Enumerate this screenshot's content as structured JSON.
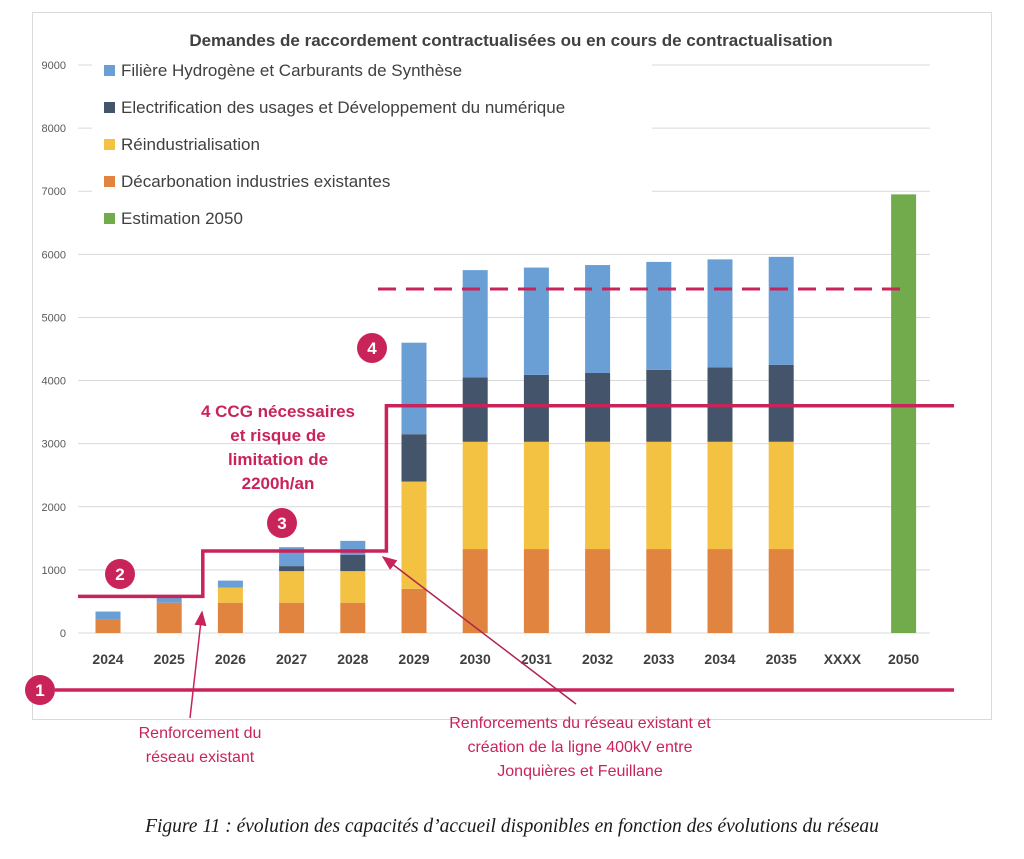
{
  "chart_data": {
    "type": "bar",
    "stacked": true,
    "title": "Demandes de raccordement contractualisées ou en cours de contractualisation",
    "categories": [
      "2024",
      "2025",
      "2026",
      "2027",
      "2028",
      "2029",
      "2030",
      "2031",
      "2032",
      "2033",
      "2034",
      "2035",
      "XXXX",
      "2050"
    ],
    "ylim": [
      0,
      9000
    ],
    "yticks": [
      "0",
      "1000",
      "2000",
      "3000",
      "4000",
      "5000",
      "6000",
      "7000",
      "8000",
      "9000"
    ],
    "grid": true,
    "legend_position": "top-left",
    "series": [
      {
        "name": "Décarbonation industries existantes",
        "color": "#e0843f",
        "values": [
          220,
          480,
          480,
          480,
          480,
          700,
          1330,
          1330,
          1330,
          1330,
          1330,
          1330,
          0,
          0
        ]
      },
      {
        "name": "Réindustrialisation",
        "color": "#f4c242",
        "values": [
          0,
          0,
          240,
          500,
          500,
          1700,
          1700,
          1700,
          1700,
          1700,
          1700,
          1700,
          0,
          0
        ]
      },
      {
        "name": "Electrification des usages et Développement du numérique",
        "color": "#44546a",
        "values": [
          0,
          0,
          0,
          80,
          260,
          750,
          1020,
          1060,
          1090,
          1140,
          1180,
          1220,
          0,
          0
        ]
      },
      {
        "name": "Filière Hydrogène et Carburants de Synthèse",
        "color": "#6a9fd6",
        "values": [
          120,
          90,
          110,
          300,
          220,
          1450,
          1700,
          1700,
          1710,
          1710,
          1710,
          1710,
          0,
          0
        ]
      },
      {
        "name": "Estimation 2050",
        "color": "#72ab4c",
        "values": [
          0,
          0,
          0,
          0,
          0,
          0,
          0,
          0,
          0,
          0,
          0,
          0,
          0,
          6950
        ]
      }
    ],
    "legend_order": [
      "Filière Hydrogène et Carburants de Synthèse",
      "Electrification des usages et Développement du numérique",
      "Réindustrialisation",
      "Décarbonation industries existantes",
      "Estimation 2050"
    ],
    "capacity_step": {
      "color": "#c8245a",
      "levels": [
        {
          "value": 580,
          "from": "2024",
          "to": "2025"
        },
        {
          "value": 1300,
          "from": "2026",
          "to": "2028"
        },
        {
          "value": 3600,
          "from": "2029",
          "to": "2050"
        }
      ],
      "dashed_level": {
        "value": 5450,
        "from": "2029",
        "to": "2050"
      }
    },
    "annotations": {
      "badges": [
        "1",
        "2",
        "3",
        "4"
      ],
      "ccg_text": [
        "4 CCG nécessaires",
        "et risque de",
        "limitation de",
        "2200h/an"
      ],
      "note_left": [
        "Renforcement du",
        "réseau existant"
      ],
      "note_right": [
        "Renforcements du réseau existant et",
        "création de la ligne 400kV entre",
        "Jonquières et Feuillane"
      ]
    }
  },
  "caption": "Figure 11 : évolution des capacités d’accueil disponibles en fonction des évolutions du réseau"
}
